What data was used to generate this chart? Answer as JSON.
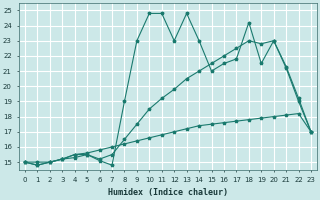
{
  "xlabel": "Humidex (Indice chaleur)",
  "xlim": [
    -0.5,
    23.5
  ],
  "ylim": [
    14.5,
    25.5
  ],
  "xticks": [
    0,
    1,
    2,
    3,
    4,
    5,
    6,
    7,
    8,
    9,
    10,
    11,
    12,
    13,
    14,
    15,
    16,
    17,
    18,
    19,
    20,
    21,
    22,
    23
  ],
  "yticks": [
    15,
    16,
    17,
    18,
    19,
    20,
    21,
    22,
    23,
    24,
    25
  ],
  "bg_color": "#cce8e8",
  "grid_color": "#ffffff",
  "line_color": "#1a7a6e",
  "series": [
    {
      "x": [
        0,
        1,
        2,
        3,
        4,
        5,
        6,
        7,
        8,
        9,
        10,
        11,
        12,
        13,
        14,
        15,
        16,
        17,
        18,
        19,
        20,
        21,
        22,
        23
      ],
      "y": [
        15,
        14.8,
        15,
        15.2,
        15.3,
        15.5,
        15.1,
        14.8,
        19,
        23,
        24.8,
        24.8,
        23,
        24.8,
        23,
        21,
        21.5,
        21.8,
        24.2,
        21.5,
        23,
        21.3,
        19.2,
        17
      ]
    },
    {
      "x": [
        0,
        1,
        2,
        3,
        4,
        5,
        6,
        7,
        8,
        9,
        10,
        11,
        12,
        13,
        14,
        15,
        16,
        17,
        18,
        19,
        20,
        21,
        22,
        23
      ],
      "y": [
        15,
        14.8,
        15,
        15.2,
        15.5,
        15.5,
        15.2,
        15.5,
        16.5,
        17.5,
        18.5,
        19.2,
        19.8,
        20.5,
        21,
        21.5,
        22,
        22.5,
        23,
        22.8,
        23,
        21.2,
        19,
        17
      ]
    },
    {
      "x": [
        0,
        1,
        2,
        3,
        4,
        5,
        6,
        7,
        8,
        9,
        10,
        11,
        12,
        13,
        14,
        15,
        16,
        17,
        18,
        19,
        20,
        21,
        22,
        23
      ],
      "y": [
        15,
        15,
        15,
        15.2,
        15.5,
        15.6,
        15.8,
        16.0,
        16.2,
        16.4,
        16.6,
        16.8,
        17.0,
        17.2,
        17.4,
        17.5,
        17.6,
        17.7,
        17.8,
        17.9,
        18.0,
        18.1,
        18.2,
        17.0
      ]
    }
  ]
}
